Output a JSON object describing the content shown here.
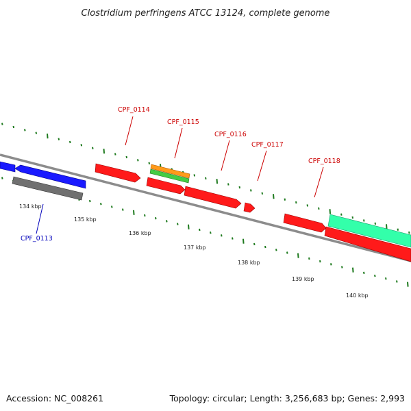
{
  "title": "Clostridium perfringens ATCC 13124, complete genome",
  "footer": {
    "accession": "Accession: NC_008261",
    "summary": "Topology: circular; Length: 3,256,683 bp; Genes: 2,993"
  },
  "colors": {
    "background": "#ffffff",
    "backbone": "#8c8c8c",
    "tick": "#1e7a1e",
    "label_forward": "#cc0000",
    "label_reverse": "#0000bb",
    "gene_red": "#ff1a1a",
    "gene_blue": "#1a1aff",
    "gene_gray": "#707070",
    "gene_orange": "#ff9a1a",
    "gene_green": "#44cc44",
    "gene_teal": "#33ffaa"
  },
  "ticks": [
    "134 kbp",
    "135 kbp",
    "136 kbp",
    "137 kbp",
    "138 kbp",
    "139 kbp",
    "140 kbp"
  ],
  "gene_labels": [
    "CPF_0113",
    "CPF_0114",
    "CPF_0115",
    "CPF_0116",
    "CPF_0117",
    "CPF_0118"
  ]
}
